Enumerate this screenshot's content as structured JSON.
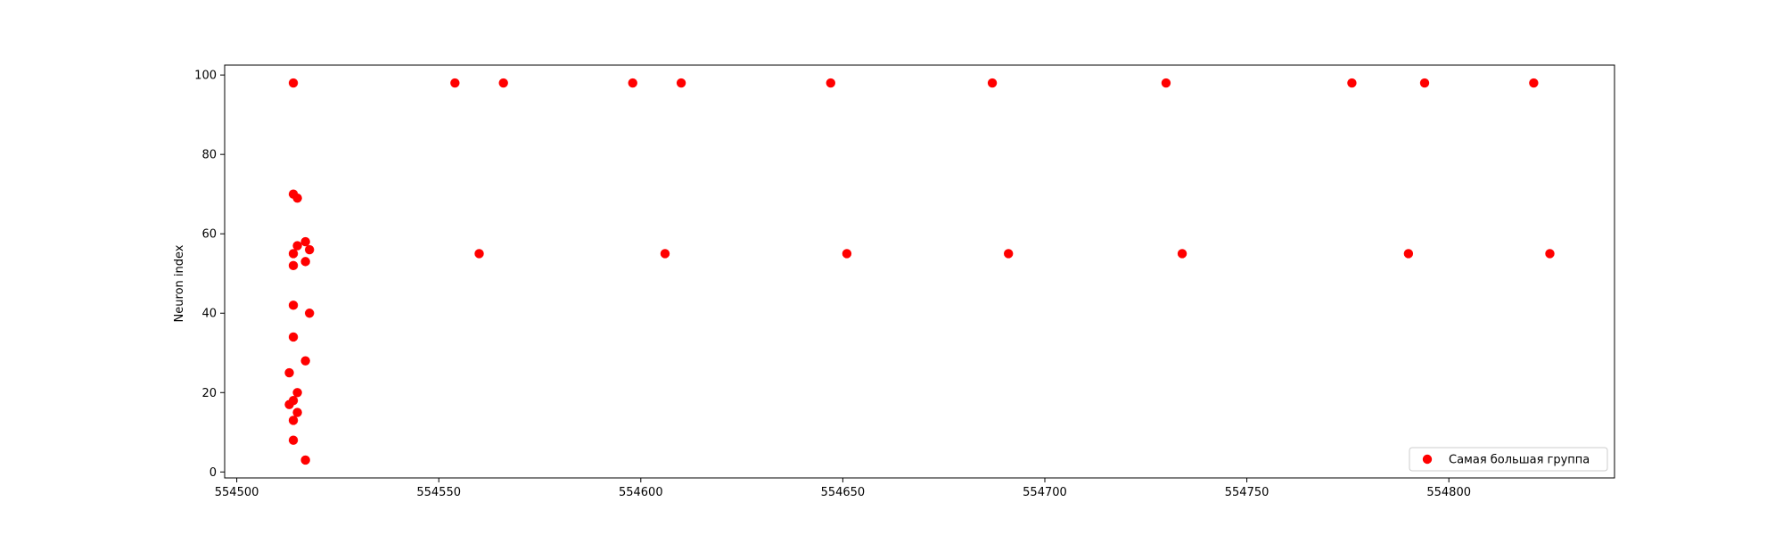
{
  "chart_data": {
    "type": "scatter",
    "title": "",
    "xlabel": "",
    "ylabel": "Neuron index",
    "xlim": [
      554497,
      554841
    ],
    "ylim": [
      -1.5,
      102.5
    ],
    "xticks": [
      554500,
      554550,
      554600,
      554650,
      554700,
      554750,
      554800
    ],
    "yticks": [
      0,
      20,
      40,
      60,
      80,
      100
    ],
    "grid": false,
    "legend": {
      "position": "lower-right"
    },
    "series": [
      {
        "name": "Самая большая группа",
        "color": "#ff0000",
        "points": [
          [
            554514,
            98
          ],
          [
            554554,
            98
          ],
          [
            554566,
            98
          ],
          [
            554598,
            98
          ],
          [
            554610,
            98
          ],
          [
            554647,
            98
          ],
          [
            554687,
            98
          ],
          [
            554730,
            98
          ],
          [
            554776,
            98
          ],
          [
            554794,
            98
          ],
          [
            554821,
            98
          ],
          [
            554560,
            55
          ],
          [
            554606,
            55
          ],
          [
            554651,
            55
          ],
          [
            554691,
            55
          ],
          [
            554734,
            55
          ],
          [
            554790,
            55
          ],
          [
            554825,
            55
          ],
          [
            554514,
            70
          ],
          [
            554515,
            69
          ],
          [
            554517,
            58
          ],
          [
            554515,
            57
          ],
          [
            554518,
            56
          ],
          [
            554514,
            55
          ],
          [
            554517,
            53
          ],
          [
            554514,
            52
          ],
          [
            554514,
            42
          ],
          [
            554518,
            40
          ],
          [
            554514,
            34
          ],
          [
            554517,
            28
          ],
          [
            554513,
            25
          ],
          [
            554515,
            20
          ],
          [
            554514,
            18
          ],
          [
            554513,
            17
          ],
          [
            554515,
            15
          ],
          [
            554514,
            13
          ],
          [
            554514,
            8
          ],
          [
            554517,
            3
          ]
        ]
      }
    ]
  }
}
